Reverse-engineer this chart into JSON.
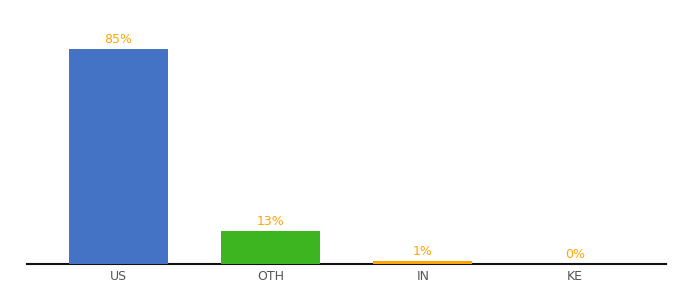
{
  "categories": [
    "US",
    "OTH",
    "IN",
    "KE"
  ],
  "values": [
    85,
    13,
    1,
    0
  ],
  "labels": [
    "85%",
    "13%",
    "1%",
    "0%"
  ],
  "bar_colors": [
    "#4472C4",
    "#3CB521",
    "#FFA500",
    "#FFA500"
  ],
  "background_color": "#ffffff",
  "ylim": [
    0,
    95
  ],
  "label_fontsize": 9,
  "tick_fontsize": 9,
  "label_color": "#FFA500",
  "bar_width": 0.65,
  "figsize": [
    6.8,
    3.0
  ],
  "dpi": 100
}
